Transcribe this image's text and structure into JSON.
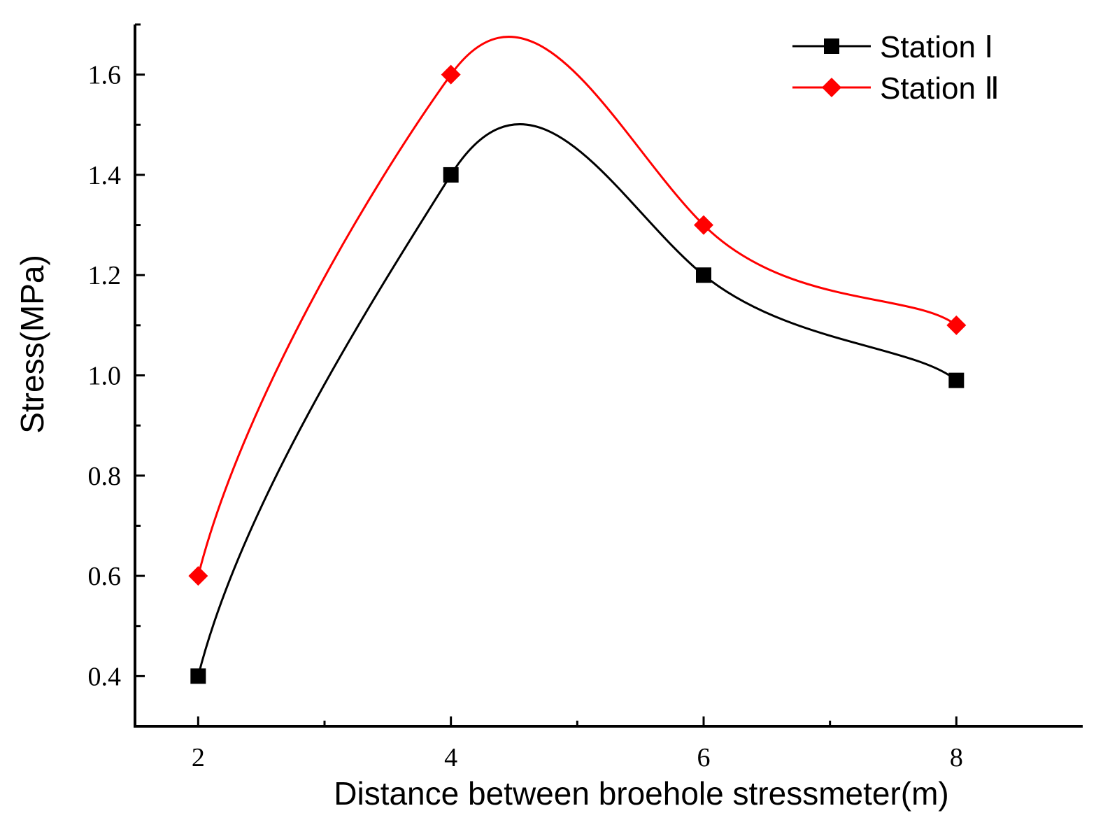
{
  "chart_data": {
    "type": "line",
    "title": "",
    "xlabel": "Distance between  broehole stressmeter(m)",
    "ylabel": "Stress(MPa)",
    "x": [
      2,
      4,
      6,
      8
    ],
    "xlim": [
      1.5,
      9.0
    ],
    "ylim": [
      0.3,
      1.7
    ],
    "xticks": [
      2,
      4,
      6,
      8
    ],
    "xtick_labels": [
      "2",
      "4",
      "6",
      "8"
    ],
    "yticks": [
      0.4,
      0.6,
      0.8,
      1.0,
      1.2,
      1.4,
      1.6
    ],
    "ytick_labels": [
      "0.4",
      "0.6",
      "0.8",
      "1.0",
      "1.2",
      "1.4",
      "1.6"
    ],
    "grid": false,
    "legend_position": "top-right",
    "smooth": true,
    "series": [
      {
        "name": "Station Ⅰ",
        "values": [
          0.4,
          1.4,
          1.2,
          0.99
        ],
        "color": "#000000",
        "marker": "square"
      },
      {
        "name": "Station Ⅱ",
        "values": [
          0.6,
          1.6,
          1.3,
          1.1
        ],
        "color": "#ff0000",
        "marker": "diamond"
      }
    ]
  }
}
